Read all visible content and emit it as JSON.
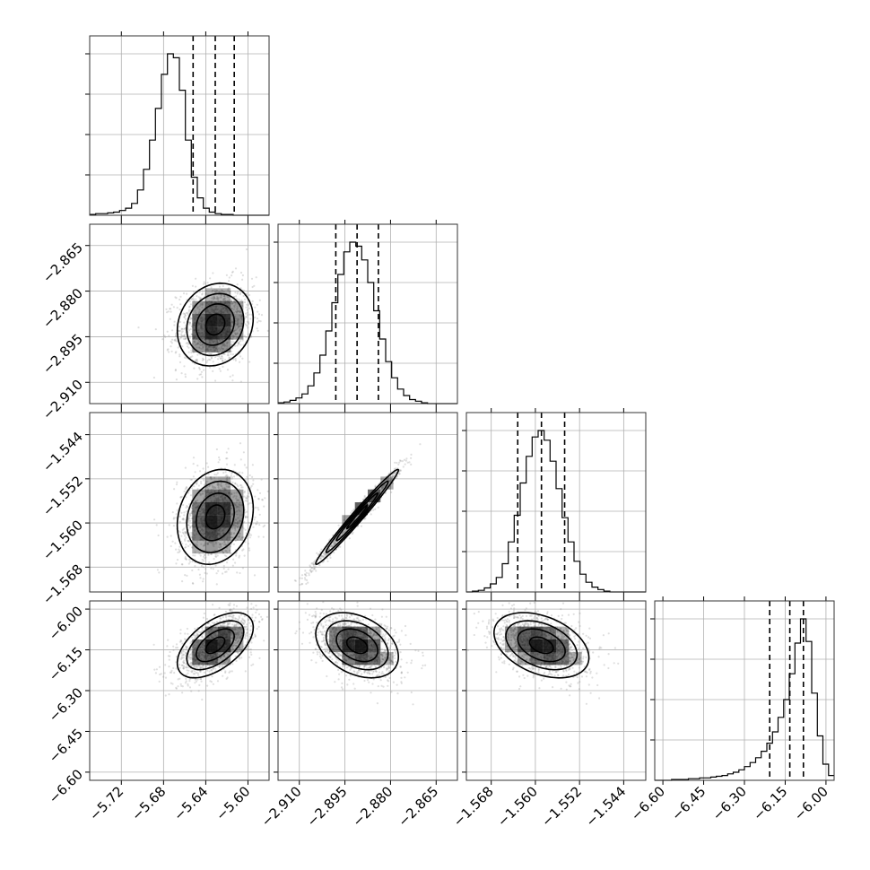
{
  "chart_data": {
    "type": "corner",
    "parameters": [
      {
        "range": [
          -5.75,
          -5.58
        ],
        "ticks": [
          -5.72,
          -5.68,
          -5.64,
          -5.6
        ],
        "tick_labels": [
          "−5.72",
          "−5.68",
          "−5.64",
          "−5.60"
        ],
        "quantiles": [
          -5.652,
          -5.631,
          -5.613
        ],
        "median": -5.631,
        "sigma": 0.018
      },
      {
        "range": [
          -2.917,
          -2.858
        ],
        "ticks": [
          -2.91,
          -2.895,
          -2.88,
          -2.865
        ],
        "tick_labels": [
          "−2.910",
          "−2.895",
          "−2.880",
          "−2.865"
        ],
        "quantiles": [
          -2.898,
          -2.891,
          -2.884
        ],
        "median": -2.891,
        "sigma": 0.0068
      },
      {
        "range": [
          -1.5725,
          -1.54
        ],
        "ticks": [
          -1.568,
          -1.56,
          -1.552,
          -1.544
        ],
        "tick_labels": [
          "−1.568",
          "−1.560",
          "−1.552",
          "−1.544"
        ],
        "quantiles": [
          -1.5632,
          -1.5589,
          -1.5547
        ],
        "median": -1.5589,
        "sigma": 0.0043
      },
      {
        "range": [
          -6.63,
          -5.97
        ],
        "ticks": [
          -6.6,
          -6.45,
          -6.3,
          -6.15,
          -6.0
        ],
        "tick_labels": [
          "−6.60",
          "−6.45",
          "−6.30",
          "−6.15",
          "−6.00"
        ],
        "quantiles": [
          -6.207,
          -6.133,
          -6.083
        ],
        "median": -6.133,
        "sigma": 0.06
      }
    ],
    "histograms": [
      {
        "param": 0,
        "counts": [
          1,
          2,
          2,
          3,
          4,
          6,
          9,
          15,
          32,
          58,
          95,
          135,
          178,
          204,
          199,
          158,
          95,
          48,
          22,
          9,
          4,
          2,
          1,
          1,
          0,
          0,
          0,
          0,
          0,
          0
        ]
      },
      {
        "param": 1,
        "counts": [
          1,
          2,
          4,
          7,
          12,
          22,
          38,
          60,
          90,
          125,
          160,
          188,
          200,
          195,
          178,
          150,
          115,
          80,
          52,
          32,
          18,
          10,
          5,
          3,
          1,
          0,
          0,
          0,
          0,
          0
        ]
      },
      {
        "param": 2,
        "counts": [
          0,
          1,
          2,
          5,
          10,
          18,
          35,
          62,
          95,
          135,
          168,
          192,
          200,
          188,
          162,
          128,
          92,
          62,
          38,
          22,
          12,
          6,
          3,
          1,
          0,
          0,
          0,
          0,
          0,
          0
        ]
      },
      {
        "param": 3,
        "counts": [
          0,
          0,
          0,
          1,
          1,
          1,
          2,
          2,
          3,
          3,
          4,
          5,
          6,
          8,
          10,
          13,
          17,
          22,
          28,
          36,
          46,
          60,
          78,
          100,
          132,
          170,
          200,
          172,
          108,
          55,
          20,
          6
        ]
      }
    ],
    "pairs": [
      {
        "x": 0,
        "y": 1,
        "correlation": 0.15
      },
      {
        "x": 0,
        "y": 2,
        "correlation": 0.18
      },
      {
        "x": 1,
        "y": 2,
        "correlation": 0.985
      },
      {
        "x": 0,
        "y": 3,
        "correlation": 0.55
      },
      {
        "x": 1,
        "y": 3,
        "correlation": -0.35
      },
      {
        "x": 2,
        "y": 3,
        "correlation": -0.38
      }
    ],
    "contour_levels_sigma": [
      0.5,
      1.0,
      1.5,
      2.0
    ],
    "grid": true
  }
}
